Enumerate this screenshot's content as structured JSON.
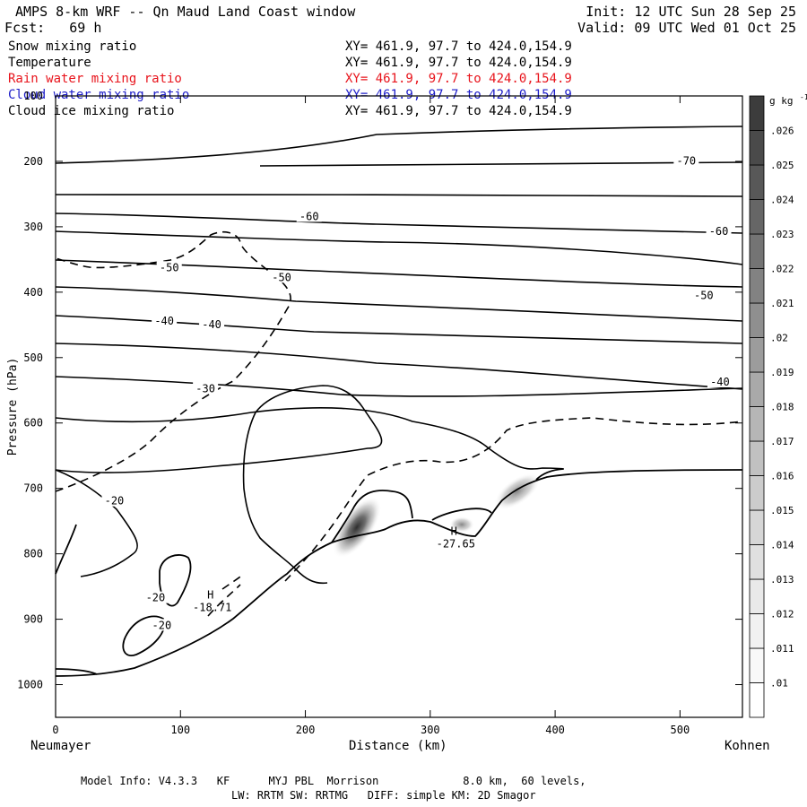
{
  "header": {
    "title": "AMPS 8-km WRF -- Qn Maud Land Coast window",
    "init": "Init: 12 UTC Sun 28 Sep 25",
    "fcst": "Fcst:   69 h",
    "valid": "Valid: 09 UTC Wed 01 Oct 25"
  },
  "fields": [
    {
      "name": "Snow mixing ratio",
      "xy": "XY= 461.9, 97.7 to 424.0,154.9",
      "color": "#000000"
    },
    {
      "name": "Temperature",
      "xy": "XY= 461.9, 97.7 to 424.0,154.9",
      "color": "#000000"
    },
    {
      "name": "Rain water mixing ratio",
      "xy": "XY= 461.9, 97.7 to 424.0,154.9",
      "color": "#e8141c"
    },
    {
      "name": "Cloud water mixing ratio",
      "xy": "XY= 461.9, 97.7 to 424.0,154.9",
      "color": "#1c1cc8"
    },
    {
      "name": "Cloud ice mixing ratio",
      "xy": "XY= 461.9, 97.7 to 424.0,154.9",
      "color": "#000000"
    }
  ],
  "footer": {
    "line1": "Model Info: V4.3.3   KF      MYJ PBL  Morrison             8.0 km,  60 levels,",
    "line2": "LW: RRTM SW: RRTMG   DIFF: simple KM: 2D Smagor"
  },
  "chart_data": {
    "type": "contour",
    "xlabel": "Distance (km)",
    "ylabel": "Pressure (hPa)",
    "x_left_label": "Neumayer",
    "x_right_label": "Kohnen",
    "xlim": [
      0,
      550
    ],
    "ylim": [
      1050,
      100
    ],
    "x_ticks": [
      0,
      100,
      200,
      300,
      400,
      500
    ],
    "y_ticks": [
      100,
      200,
      300,
      400,
      500,
      600,
      700,
      800,
      900,
      1000
    ],
    "temperature_contour_labels": [
      {
        "text": "-70",
        "x": 505,
        "p": 202
      },
      {
        "text": "-60",
        "x": 203,
        "p": 287
      },
      {
        "text": "-60",
        "x": 531,
        "p": 310
      },
      {
        "text": "-50",
        "x": 91,
        "p": 365
      },
      {
        "text": "-50",
        "x": 181,
        "p": 380
      },
      {
        "text": "-50",
        "x": 519,
        "p": 408
      },
      {
        "text": "-40",
        "x": 87,
        "p": 447
      },
      {
        "text": "-40",
        "x": 125,
        "p": 452
      },
      {
        "text": "-40",
        "x": 532,
        "p": 540
      },
      {
        "text": "-30",
        "x": 120,
        "p": 550
      },
      {
        "text": "-20",
        "x": 47,
        "p": 722
      },
      {
        "text": "-20",
        "x": 80,
        "p": 870
      },
      {
        "text": "-20",
        "x": 85,
        "p": 912
      }
    ],
    "extrema": [
      {
        "symbol": "H",
        "value": "-18.71",
        "x": 124,
        "p": 879
      },
      {
        "symbol": "H",
        "value": "-27.65",
        "x": 319,
        "p": 782
      }
    ],
    "colorbar": {
      "unit": "g kg",
      "unit_exp": "-1",
      "levels": [
        ".01",
        ".011",
        ".012",
        ".013",
        ".014",
        ".015",
        ".016",
        ".017",
        ".018",
        ".019",
        ".02",
        ".021",
        ".022",
        ".023",
        ".024",
        ".025",
        ".026"
      ],
      "colors": [
        "#ffffff",
        "#f9f9f9",
        "#f1f1f1",
        "#e9e9e9",
        "#e0e0e0",
        "#d6d6d6",
        "#cccccc",
        "#c1c1c1",
        "#b6b6b6",
        "#a9a9a9",
        "#9c9c9c",
        "#8f8f8f",
        "#828282",
        "#747474",
        "#666666",
        "#585858",
        "#4a4a4a",
        "#3c3c3c"
      ]
    }
  }
}
